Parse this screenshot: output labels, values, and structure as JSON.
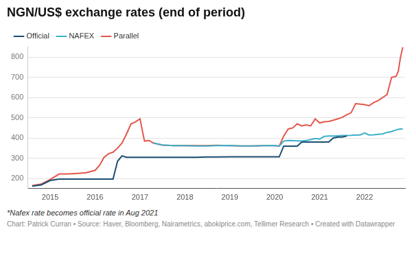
{
  "chart_data": {
    "type": "line",
    "title": "NGN/US$ exchange rates (end of period)",
    "footnote": "*Nafex rate becomes official rate in Aug 2021",
    "source": "Chart: Patrick Curran • Source: Haver, Bloomberg, Nairametrics, abokiprice.com, Tellimer Research • Created with Datawrapper",
    "legend": "top-left",
    "grid": true,
    "x": [
      2014.6,
      2014.8,
      2015.0,
      2015.2,
      2015.4,
      2015.6,
      2015.8,
      2016.0,
      2016.1,
      2016.2,
      2016.3,
      2016.4,
      2016.5,
      2016.6,
      2016.7,
      2016.8,
      2016.9,
      2017.0,
      2017.1,
      2017.2,
      2017.3,
      2017.5,
      2017.75,
      2018.0,
      2018.25,
      2018.5,
      2018.7,
      2019.0,
      2019.25,
      2019.5,
      2019.75,
      2020.0,
      2020.1,
      2020.2,
      2020.3,
      2020.4,
      2020.5,
      2020.6,
      2020.7,
      2020.8,
      2020.9,
      2021.0,
      2021.1,
      2021.2,
      2021.3,
      2021.4,
      2021.5,
      2021.6,
      2021.7,
      2021.8,
      2021.9,
      2022.0,
      2022.1,
      2022.2,
      2022.3,
      2022.4,
      2022.5,
      2022.6,
      2022.7,
      2022.75,
      2022.8,
      2022.85
    ],
    "xlim": [
      2014.5,
      2022.9
    ],
    "xticks": [
      2015,
      2016,
      2017,
      2018,
      2019,
      2020,
      2021,
      2022
    ],
    "ylim": [
      150,
      850
    ],
    "yticks": [
      200,
      300,
      400,
      500,
      600,
      700,
      800
    ],
    "series": [
      {
        "name": "Official",
        "color": "#1b4f72",
        "values": [
          162,
          168,
          190,
          197,
          197,
          197,
          197,
          197,
          197,
          197,
          197,
          197,
          285,
          312,
          305,
          305,
          305,
          305,
          305,
          305,
          305,
          305,
          305,
          305,
          305,
          306,
          306,
          307,
          307,
          307,
          307,
          307,
          307,
          360,
          360,
          360,
          360,
          380,
          380,
          380,
          380,
          380,
          380,
          380,
          400,
          405,
          405,
          410,
          null,
          null,
          null,
          null,
          null,
          null,
          null,
          null,
          null,
          null,
          null,
          null,
          null,
          null
        ]
      },
      {
        "name": "NAFEX",
        "color": "#3ab0c9",
        "values": [
          null,
          null,
          null,
          null,
          null,
          null,
          null,
          null,
          null,
          null,
          null,
          null,
          null,
          null,
          null,
          null,
          null,
          null,
          null,
          null,
          375,
          366,
          362,
          362,
          361,
          361,
          362,
          363,
          361,
          361,
          362,
          363,
          360,
          385,
          388,
          387,
          386,
          385,
          388,
          392,
          398,
          395,
          408,
          410,
          410,
          411,
          412,
          412,
          413,
          415,
          415,
          425,
          415,
          416,
          418,
          420,
          428,
          432,
          440,
          443,
          445,
          445
        ]
      },
      {
        "name": "Parallel",
        "color": "#e2574c",
        "values": [
          165,
          172,
          195,
          222,
          222,
          225,
          228,
          240,
          265,
          305,
          322,
          330,
          350,
          375,
          420,
          470,
          480,
          495,
          385,
          388,
          375,
          365,
          362,
          363,
          362,
          362,
          364,
          362,
          361,
          361,
          362,
          362,
          360,
          410,
          445,
          450,
          470,
          460,
          465,
          460,
          495,
          475,
          480,
          482,
          488,
          495,
          502,
          515,
          525,
          570,
          568,
          565,
          560,
          575,
          585,
          600,
          615,
          700,
          705,
          730,
          800,
          850
        ]
      }
    ]
  }
}
